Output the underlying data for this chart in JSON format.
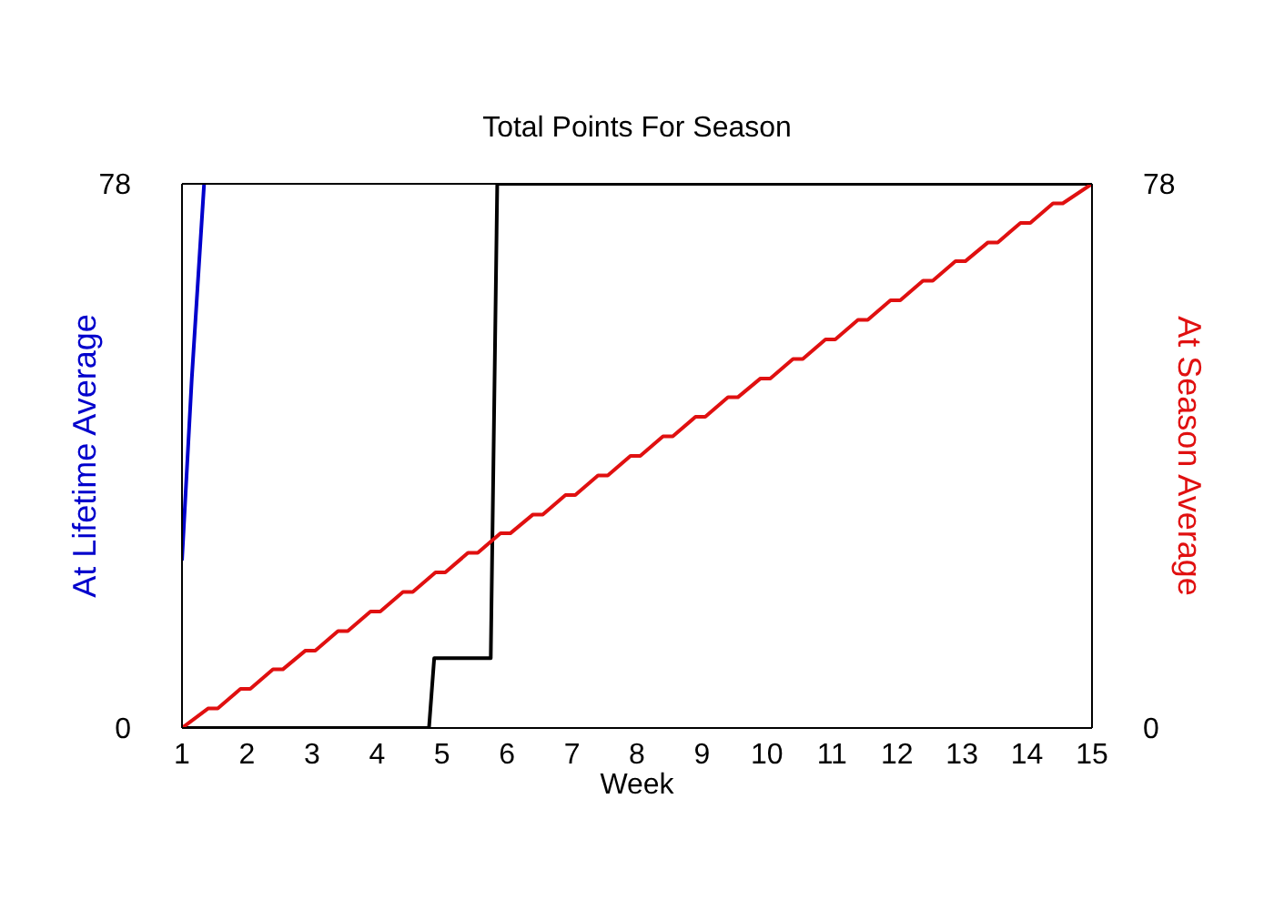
{
  "chart_data": {
    "type": "line",
    "title": "Total Points For Season",
    "xlabel": "Week",
    "ylabel": "At Lifetime Average",
    "y2label": "At Season Average",
    "xlim": [
      1,
      15
    ],
    "xticks": [
      1,
      2,
      3,
      4,
      5,
      6,
      7,
      8,
      9,
      10,
      11,
      12,
      13,
      14,
      15
    ],
    "ylim": [
      0,
      78
    ],
    "yticks": [
      0,
      78
    ],
    "y2lim": [
      0,
      78
    ],
    "y2ticks": [
      0,
      78
    ],
    "grid": false,
    "legend": false,
    "marker": "none",
    "line_style": "solid",
    "series": [
      {
        "color": "#0000cc",
        "x": [
          1,
          1.15,
          1.34
        ],
        "values": [
          24,
          50,
          78
        ]
      },
      {
        "color": "#000000",
        "x": [
          1,
          4.8,
          4.88,
          5.75,
          5.85,
          15
        ],
        "values": [
          0,
          0,
          10,
          10,
          78,
          78
        ]
      },
      {
        "color": "#e01010",
        "axis": "y2",
        "x": [
          1,
          1.4,
          1.55,
          1.9,
          2.05,
          2.4,
          2.55,
          2.9,
          3.05,
          3.4,
          3.55,
          3.9,
          4.05,
          4.4,
          4.55,
          4.9,
          5.05,
          5.4,
          5.55,
          5.9,
          6.05,
          6.4,
          6.55,
          6.9,
          7.05,
          7.4,
          7.55,
          7.9,
          8.05,
          8.4,
          8.55,
          8.9,
          9.05,
          9.4,
          9.55,
          9.9,
          10.05,
          10.4,
          10.55,
          10.9,
          11.05,
          11.4,
          11.55,
          11.9,
          12.05,
          12.4,
          12.55,
          12.9,
          13.05,
          13.4,
          13.55,
          13.9,
          14.05,
          14.4,
          14.55,
          15
        ],
        "values": [
          0,
          2.8,
          2.8,
          5.6,
          5.6,
          8.4,
          8.4,
          11.1,
          11.1,
          13.9,
          13.9,
          16.7,
          16.7,
          19.5,
          19.5,
          22.3,
          22.3,
          25.1,
          25.1,
          27.9,
          27.9,
          30.6,
          30.6,
          33.4,
          33.4,
          36.2,
          36.2,
          39,
          39,
          41.8,
          41.8,
          44.6,
          44.6,
          47.4,
          47.4,
          50.1,
          50.1,
          52.9,
          52.9,
          55.7,
          55.7,
          58.5,
          58.5,
          61.3,
          61.3,
          64.1,
          64.1,
          66.9,
          66.9,
          69.6,
          69.6,
          72.4,
          72.4,
          75.2,
          75.2,
          78
        ]
      }
    ]
  }
}
